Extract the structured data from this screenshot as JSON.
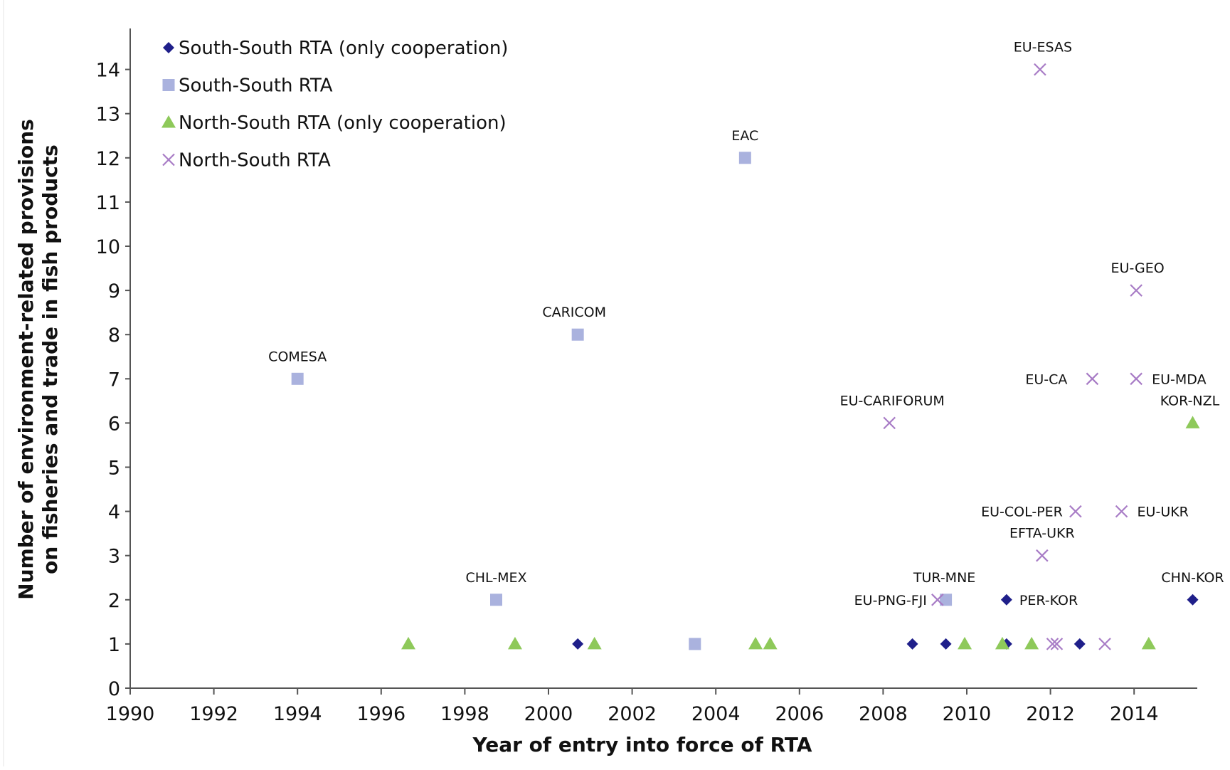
{
  "chart_data": {
    "type": "scatter",
    "title": "",
    "xlabel": "Year of entry into force of RTA",
    "ylabel_lines": [
      "Number of environment-related provisions",
      "on fisheries and trade in fish products"
    ],
    "xlim": [
      1990,
      2015.5
    ],
    "ylim": [
      0,
      14.9
    ],
    "x_ticks": [
      1990,
      1992,
      1994,
      1996,
      1998,
      2000,
      2002,
      2004,
      2006,
      2008,
      2010,
      2012,
      2014
    ],
    "y_ticks": [
      0,
      1,
      2,
      3,
      4,
      5,
      6,
      7,
      8,
      9,
      10,
      11,
      12,
      13,
      14
    ],
    "grid": false,
    "legend_position": "top-left",
    "series": [
      {
        "name": "South-South RTA (only cooperation)",
        "marker": "diamond",
        "color": "#1f1f8a",
        "points": [
          {
            "x": 2000.7,
            "y": 1,
            "label": ""
          },
          {
            "x": 2008.7,
            "y": 1,
            "label": ""
          },
          {
            "x": 2009.5,
            "y": 1,
            "label": ""
          },
          {
            "x": 2010.95,
            "y": 1,
            "label": ""
          },
          {
            "x": 2012.7,
            "y": 1,
            "label": ""
          },
          {
            "x": 2010.95,
            "y": 2,
            "label": "PER-KOR"
          },
          {
            "x": 2015.4,
            "y": 2,
            "label": "CHN-KOR"
          }
        ]
      },
      {
        "name": "South-South RTA",
        "marker": "square",
        "color": "#aab2de",
        "points": [
          {
            "x": 1994.0,
            "y": 7,
            "label": "COMESA"
          },
          {
            "x": 1998.75,
            "y": 2,
            "label": "CHL-MEX"
          },
          {
            "x": 2000.7,
            "y": 8,
            "label": "CARICOM"
          },
          {
            "x": 2003.5,
            "y": 1,
            "label": ""
          },
          {
            "x": 2004.7,
            "y": 12,
            "label": "EAC"
          },
          {
            "x": 2009.5,
            "y": 2,
            "label": "TUR-MNE"
          }
        ]
      },
      {
        "name": "North-South RTA  (only cooperation)",
        "marker": "triangle",
        "color": "#8ec95a",
        "points": [
          {
            "x": 1996.65,
            "y": 1,
            "label": ""
          },
          {
            "x": 1999.2,
            "y": 1,
            "label": ""
          },
          {
            "x": 2001.1,
            "y": 1,
            "label": ""
          },
          {
            "x": 2004.95,
            "y": 1,
            "label": ""
          },
          {
            "x": 2005.3,
            "y": 1,
            "label": ""
          },
          {
            "x": 2009.95,
            "y": 1,
            "label": ""
          },
          {
            "x": 2010.85,
            "y": 1,
            "label": ""
          },
          {
            "x": 2011.55,
            "y": 1,
            "label": ""
          },
          {
            "x": 2014.35,
            "y": 1,
            "label": ""
          },
          {
            "x": 2015.4,
            "y": 6,
            "label": "KOR-NZL"
          }
        ]
      },
      {
        "name": "North-South RTA",
        "marker": "cross",
        "color": "#a87cc6",
        "points": [
          {
            "x": 2008.15,
            "y": 6,
            "label": "EU-CARIFORUM"
          },
          {
            "x": 2009.3,
            "y": 2,
            "label": "EU-PNG-FJI"
          },
          {
            "x": 2011.8,
            "y": 3,
            "label": "EFTA-UKR"
          },
          {
            "x": 2011.75,
            "y": 14,
            "label": "EU-ESAS"
          },
          {
            "x": 2012.05,
            "y": 1,
            "label": ""
          },
          {
            "x": 2012.15,
            "y": 1,
            "label": ""
          },
          {
            "x": 2012.6,
            "y": 4,
            "label": "EU-COL-PER"
          },
          {
            "x": 2013.0,
            "y": 7,
            "label": "EU-CA"
          },
          {
            "x": 2013.3,
            "y": 1,
            "label": ""
          },
          {
            "x": 2013.7,
            "y": 4,
            "label": "EU-UKR"
          },
          {
            "x": 2014.05,
            "y": 7,
            "label": "EU-MDA"
          },
          {
            "x": 2014.05,
            "y": 9,
            "label": "EU-GEO"
          }
        ]
      }
    ]
  }
}
